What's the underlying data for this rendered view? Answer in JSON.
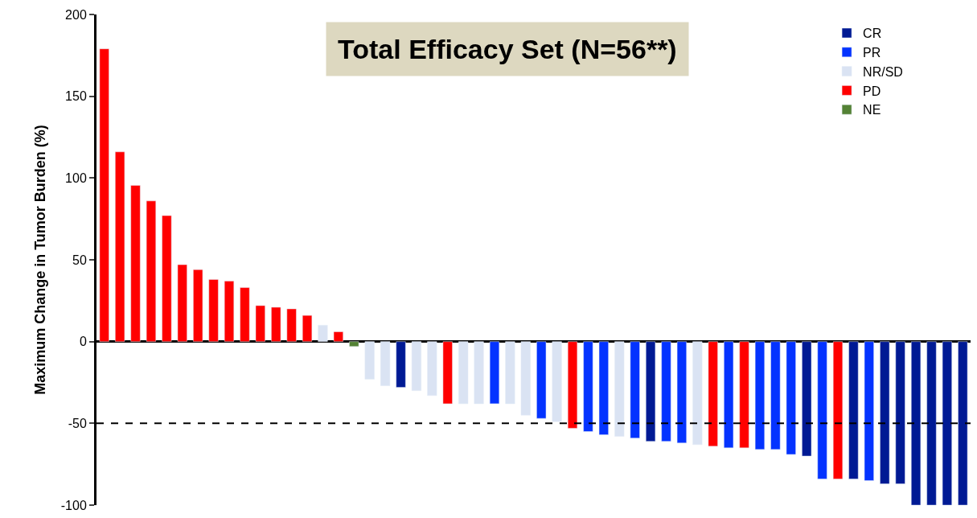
{
  "chart_data": {
    "type": "bar",
    "title": "Total Efficacy Set (N=56**)",
    "ylabel": "Maximum Change in Tumor Burden (%)",
    "categories": [
      null,
      null,
      null,
      null,
      null,
      null,
      null,
      null,
      null,
      null,
      null,
      null,
      null,
      null,
      null,
      null,
      null,
      null,
      null,
      null,
      null,
      null,
      null,
      null,
      null,
      null,
      null,
      null,
      null,
      null,
      null,
      null,
      null,
      null,
      null,
      null,
      null,
      null,
      null,
      null,
      null,
      null,
      null,
      null,
      null,
      null,
      null,
      null,
      null,
      null,
      null,
      null,
      null,
      null,
      null,
      null
    ],
    "series": [
      {
        "name": "CR",
        "color": "#001a94",
        "values": [
          null,
          null,
          null,
          null,
          null,
          null,
          null,
          null,
          null,
          null,
          null,
          null,
          null,
          null,
          null,
          null,
          null,
          null,
          null,
          -28,
          null,
          null,
          null,
          null,
          null,
          null,
          null,
          null,
          null,
          null,
          null,
          null,
          null,
          null,
          null,
          -61,
          null,
          null,
          null,
          null,
          null,
          null,
          null,
          null,
          null,
          -70,
          null,
          null,
          -84,
          null,
          -87,
          -87,
          -100,
          -100,
          -100,
          -100
        ]
      },
      {
        "name": "PR",
        "color": "#0433ff",
        "values": [
          null,
          null,
          null,
          null,
          null,
          null,
          null,
          null,
          null,
          null,
          null,
          null,
          null,
          null,
          null,
          null,
          null,
          null,
          null,
          null,
          null,
          null,
          null,
          null,
          null,
          -38,
          null,
          null,
          -47,
          null,
          null,
          -55,
          -57,
          null,
          -59,
          null,
          -61,
          -62,
          null,
          null,
          -65,
          null,
          -66,
          -66,
          -69,
          null,
          -84,
          null,
          null,
          -85,
          null,
          null,
          null,
          null,
          null,
          null
        ]
      },
      {
        "name": "NR/SD",
        "color": "#dae3f3",
        "values": [
          null,
          null,
          null,
          null,
          null,
          null,
          null,
          null,
          null,
          null,
          null,
          null,
          null,
          null,
          10,
          null,
          null,
          -23,
          -27,
          null,
          -30,
          -33,
          null,
          -38,
          -38,
          null,
          -38,
          -45,
          null,
          -49,
          null,
          null,
          null,
          -58,
          null,
          null,
          null,
          null,
          -63,
          null,
          null,
          null,
          null,
          null,
          null,
          null,
          null,
          null,
          null,
          null,
          null,
          null,
          null,
          null,
          null,
          null
        ]
      },
      {
        "name": "PD",
        "color": "#ff0000",
        "values": [
          179,
          116,
          95.5,
          86,
          77,
          47,
          44,
          38,
          37,
          33,
          22,
          21,
          20,
          16,
          null,
          6,
          null,
          null,
          null,
          null,
          null,
          null,
          -38,
          null,
          null,
          null,
          null,
          null,
          null,
          null,
          -53,
          null,
          null,
          null,
          null,
          null,
          null,
          null,
          null,
          -64,
          null,
          -65,
          null,
          null,
          null,
          null,
          null,
          -84,
          null,
          null,
          null,
          null,
          null,
          null,
          null,
          null
        ]
      },
      {
        "name": "NE",
        "color": "#548235",
        "values": [
          null,
          null,
          null,
          null,
          null,
          null,
          null,
          null,
          null,
          null,
          null,
          null,
          null,
          null,
          null,
          null,
          -3,
          null,
          null,
          null,
          null,
          null,
          null,
          null,
          null,
          null,
          null,
          null,
          null,
          null,
          null,
          null,
          null,
          null,
          null,
          null,
          null,
          null,
          null,
          null,
          null,
          null,
          null,
          null,
          null,
          null,
          null,
          null,
          null,
          null,
          null,
          null,
          null,
          null,
          null,
          null
        ]
      }
    ],
    "ylim": [
      -100,
      200
    ],
    "yticks": [
      -100,
      -50,
      0,
      50,
      100,
      150,
      200
    ],
    "ref_lines": [
      {
        "axis": "y",
        "value": -50,
        "color": "#000000",
        "line_style": "dashed"
      }
    ],
    "legend": "top right"
  }
}
